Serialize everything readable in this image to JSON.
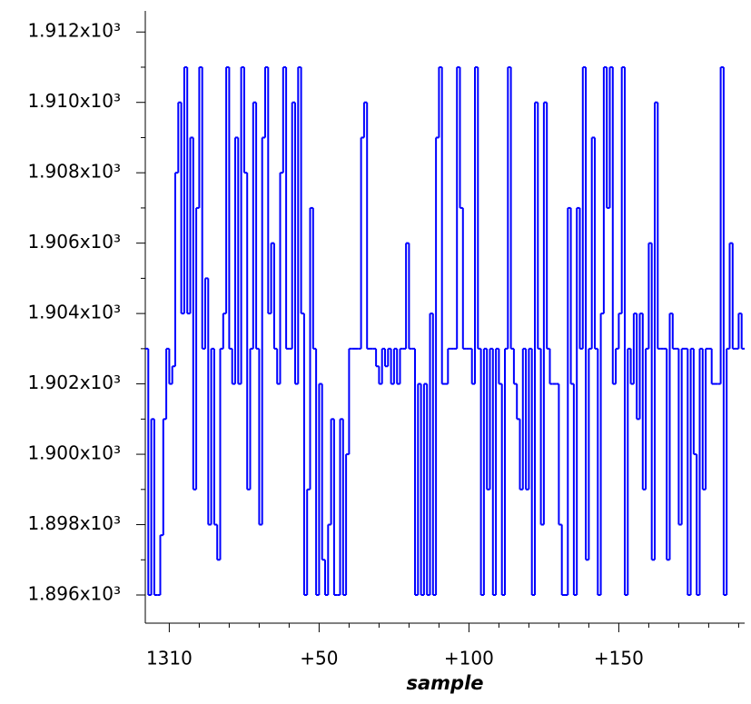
{
  "chart_data": {
    "type": "step",
    "xlabel": "sample",
    "color": "#0000ff",
    "xlim": [
      1302,
      1502
    ],
    "xticks": [
      {
        "value": 1310,
        "label": "1310"
      },
      {
        "value": 1360,
        "label": "+50"
      },
      {
        "value": 1410,
        "label": "+100"
      },
      {
        "value": 1460,
        "label": "+150"
      }
    ],
    "xminorticks": [
      1320,
      1330,
      1340,
      1350,
      1370,
      1380,
      1390,
      1400,
      1420,
      1430,
      1440,
      1450,
      1470,
      1480,
      1490,
      1500
    ],
    "ylim": [
      1895.2,
      1912.6
    ],
    "yticks": [
      {
        "value": 1896,
        "label": "1.896x10³"
      },
      {
        "value": 1898,
        "label": "1.898x10³"
      },
      {
        "value": 1900,
        "label": "1.900x10³"
      },
      {
        "value": 1902,
        "label": "1.902x10³"
      },
      {
        "value": 1904,
        "label": "1.904x10³"
      },
      {
        "value": 1906,
        "label": "1.906x10³"
      },
      {
        "value": 1908,
        "label": "1.908x10³"
      },
      {
        "value": 1910,
        "label": "1.910x10³"
      },
      {
        "value": 1912,
        "label": "1.912x10³"
      }
    ],
    "yminorticks": [
      1897,
      1899,
      1901,
      1903,
      1905,
      1907,
      1909,
      1911
    ],
    "x": [
      1302,
      1303,
      1304,
      1305,
      1306,
      1307,
      1308,
      1309,
      1310,
      1311,
      1312,
      1313,
      1314,
      1315,
      1316,
      1317,
      1318,
      1319,
      1320,
      1321,
      1322,
      1323,
      1324,
      1325,
      1326,
      1327,
      1328,
      1329,
      1330,
      1331,
      1332,
      1333,
      1334,
      1335,
      1336,
      1337,
      1338,
      1339,
      1340,
      1341,
      1342,
      1343,
      1344,
      1345,
      1346,
      1347,
      1348,
      1349,
      1350,
      1351,
      1352,
      1353,
      1354,
      1355,
      1356,
      1357,
      1358,
      1359,
      1360,
      1361,
      1362,
      1363,
      1364,
      1365,
      1366,
      1367,
      1368,
      1369,
      1370,
      1371,
      1372,
      1373,
      1374,
      1375,
      1376,
      1377,
      1378,
      1379,
      1380,
      1381,
      1382,
      1383,
      1384,
      1385,
      1386,
      1387,
      1388,
      1389,
      1390,
      1391,
      1392,
      1393,
      1394,
      1395,
      1396,
      1397,
      1398,
      1399,
      1400,
      1401,
      1402,
      1403,
      1404,
      1405,
      1406,
      1407,
      1408,
      1409,
      1410,
      1411,
      1412,
      1413,
      1414,
      1415,
      1416,
      1417,
      1418,
      1419,
      1420,
      1421,
      1422,
      1423,
      1424,
      1425,
      1426,
      1427,
      1428,
      1429,
      1430,
      1431,
      1432,
      1433,
      1434,
      1435,
      1436,
      1437,
      1438,
      1439,
      1440,
      1441,
      1442,
      1443,
      1444,
      1445,
      1446,
      1447,
      1448,
      1449,
      1450,
      1451,
      1452,
      1453,
      1454,
      1455,
      1456,
      1457,
      1458,
      1459,
      1460,
      1461,
      1462,
      1463,
      1464,
      1465,
      1466,
      1467,
      1468,
      1469,
      1470,
      1471,
      1472,
      1473,
      1474,
      1475,
      1476,
      1477,
      1478,
      1479,
      1480,
      1481,
      1482,
      1483,
      1484,
      1485,
      1486,
      1487,
      1488,
      1489,
      1490,
      1491,
      1492,
      1493,
      1494,
      1495,
      1496,
      1497,
      1498,
      1499,
      1500,
      1501
    ],
    "values": [
      1903,
      1896,
      1901,
      1896,
      1896,
      1897.7,
      1901,
      1903,
      1902,
      1902.5,
      1908,
      1910,
      1904,
      1911,
      1904,
      1909,
      1899,
      1907,
      1911,
      1903,
      1905,
      1898,
      1903,
      1898,
      1897,
      1903,
      1904,
      1911,
      1903,
      1902,
      1909,
      1902,
      1911,
      1908,
      1899,
      1903,
      1910,
      1903,
      1898,
      1909,
      1911,
      1904,
      1906,
      1903,
      1902,
      1908,
      1911,
      1903,
      1903,
      1910,
      1902,
      1911,
      1904,
      1896,
      1899,
      1907,
      1903,
      1896,
      1902,
      1897,
      1896,
      1898,
      1901,
      1896,
      1896,
      1901,
      1896,
      1900,
      1903,
      1903,
      1903,
      1903,
      1909,
      1910,
      1903,
      1903,
      1903,
      1902.5,
      1902,
      1903,
      1902.5,
      1903,
      1902,
      1903,
      1902,
      1903,
      1903,
      1906,
      1903,
      1903,
      1896,
      1902,
      1896,
      1902,
      1896,
      1904,
      1896,
      1909,
      1911,
      1902,
      1902,
      1903,
      1903,
      1903,
      1911,
      1907,
      1903,
      1903,
      1903,
      1902,
      1911,
      1903,
      1896,
      1903,
      1899,
      1903,
      1896,
      1903,
      1902,
      1896,
      1903,
      1911,
      1903,
      1902,
      1901,
      1899,
      1903,
      1899,
      1903,
      1896,
      1910,
      1903,
      1898,
      1910,
      1903,
      1902,
      1902,
      1902,
      1898,
      1896,
      1896,
      1907,
      1902,
      1896,
      1907,
      1903,
      1911,
      1897,
      1903,
      1909,
      1903,
      1896,
      1904,
      1911,
      1907,
      1911,
      1902,
      1903,
      1904,
      1911,
      1896,
      1903,
      1902,
      1904,
      1901,
      1904,
      1899,
      1903,
      1906,
      1897,
      1910,
      1903,
      1903,
      1903,
      1897,
      1904,
      1903,
      1903,
      1898,
      1903,
      1903,
      1896,
      1903,
      1900,
      1896,
      1903,
      1899,
      1903,
      1903,
      1902,
      1902,
      1902,
      1911,
      1896,
      1903,
      1906,
      1903,
      1903,
      1904,
      1903
    ]
  }
}
